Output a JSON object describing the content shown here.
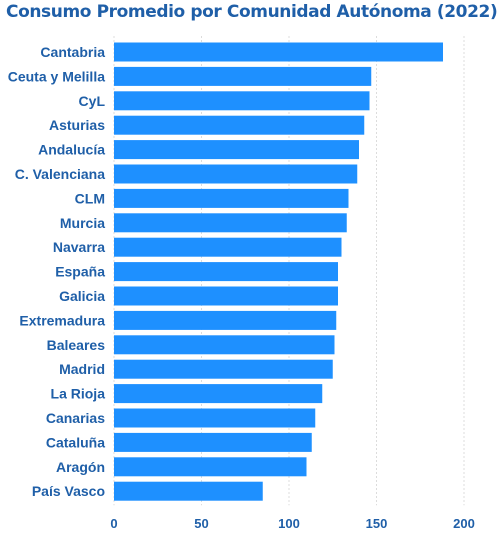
{
  "chart_data": {
    "type": "bar",
    "orientation": "horizontal",
    "title": "Consumo Promedio por Comunidad Autónoma (2022)",
    "categories": [
      "Cantabria",
      "Ceuta y Melilla",
      "CyL",
      "Asturias",
      "Andalucía",
      "C. Valenciana",
      "CLM",
      "Murcia",
      "Navarra",
      "España",
      "Galicia",
      "Extremadura",
      "Baleares",
      "Madrid",
      "La Rioja",
      "Canarias",
      "Cataluña",
      "Aragón",
      "País Vasco"
    ],
    "values": [
      188,
      147,
      146,
      143,
      140,
      139,
      134,
      133,
      130,
      128,
      128,
      127,
      126,
      125,
      119,
      115,
      113,
      110,
      85
    ],
    "xlim": [
      0,
      200
    ],
    "xticks": [
      0,
      50,
      100,
      150,
      200
    ],
    "grid": true,
    "bar_color": "#1e90ff",
    "label_color": "#1f5fa8",
    "grid_color": "#dcdcdc"
  }
}
